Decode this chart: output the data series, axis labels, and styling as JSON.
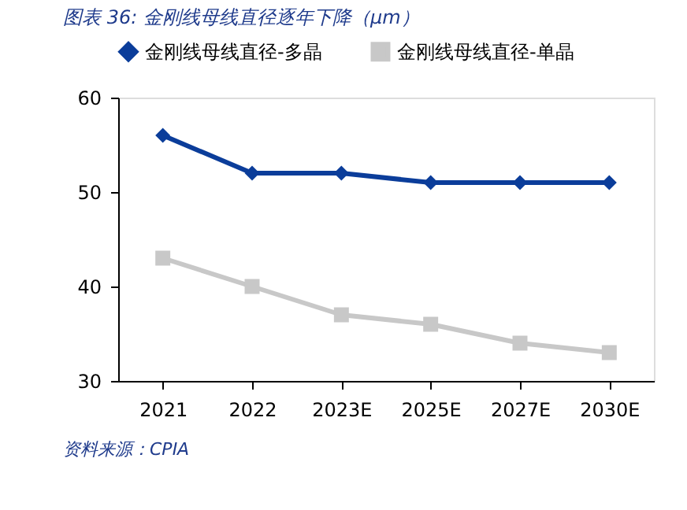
{
  "chart_data": {
    "type": "line",
    "title": "图表 36: 金刚线母线直径逐年下降（μm）",
    "categories": [
      "2021",
      "2022",
      "2023E",
      "2025E",
      "2027E",
      "2030E"
    ],
    "series": [
      {
        "name": "金刚线母线直径-多晶",
        "color": "#0b3d9a",
        "marker": "diamond",
        "values": [
          56,
          52,
          52,
          51,
          51,
          51
        ]
      },
      {
        "name": "金刚线母线直径-单晶",
        "color": "#c8c8c8",
        "marker": "square",
        "values": [
          43,
          40,
          37,
          36,
          34,
          33
        ]
      }
    ],
    "ylim": [
      30,
      60
    ],
    "yticks": [
      30,
      40,
      50,
      60
    ],
    "grid": false,
    "legend": "top",
    "line_style": "solid",
    "annotations": [
      "资料来源：CPIA"
    ]
  }
}
